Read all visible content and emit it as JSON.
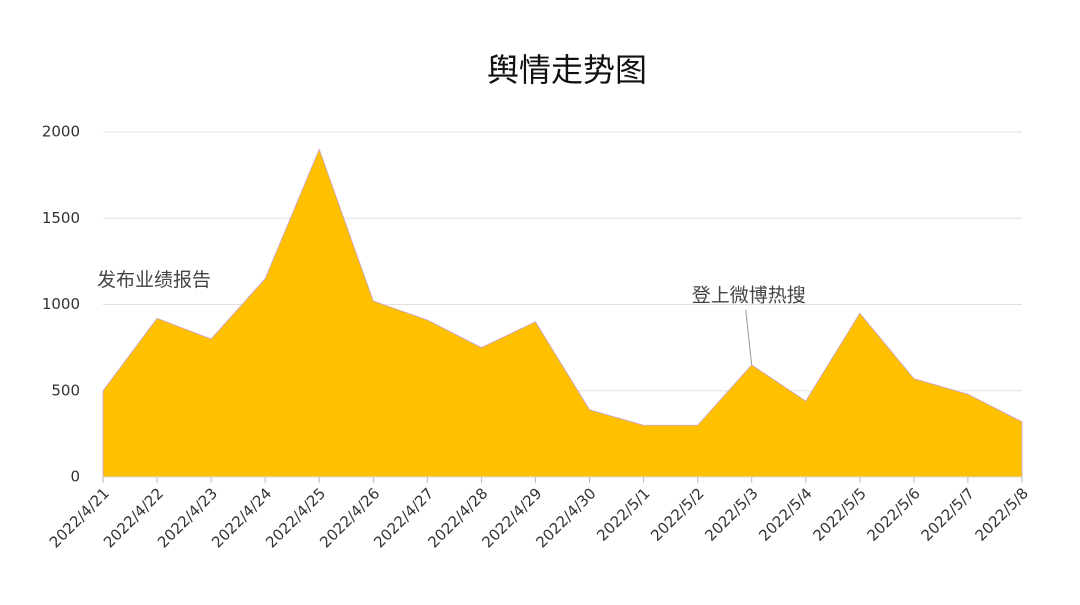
{
  "chart_data": {
    "type": "area",
    "title": "舆情走势图",
    "categories": [
      "2022/4/21",
      "2022/4/22",
      "2022/4/23",
      "2022/4/24",
      "2022/4/25",
      "2022/4/26",
      "2022/4/27",
      "2022/4/28",
      "2022/4/29",
      "2022/4/30",
      "2022/5/1",
      "2022/5/2",
      "2022/5/3",
      "2022/5/4",
      "2022/5/5",
      "2022/5/6",
      "2022/5/7",
      "2022/5/8"
    ],
    "values": [
      500,
      920,
      800,
      1150,
      1900,
      1020,
      910,
      750,
      900,
      390,
      300,
      300,
      650,
      440,
      950,
      570,
      480,
      320
    ],
    "color": "#ffc000",
    "ylim": [
      0,
      2000
    ],
    "yticks": [
      0,
      500,
      1000,
      1500,
      2000
    ],
    "grid": true,
    "annotations": [
      {
        "text": "发布业绩报告",
        "category": "2022/4/22"
      },
      {
        "text": "登上微博热搜",
        "category": "2022/5/3"
      }
    ]
  }
}
